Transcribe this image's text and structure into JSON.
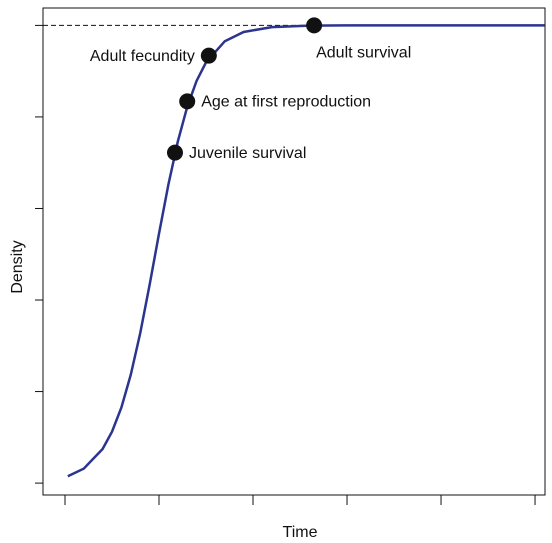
{
  "chart_data": {
    "type": "line",
    "x_label": "Time",
    "y_label": "Density",
    "xlim": [
      -0.234,
      5.106
    ],
    "ylim": [
      -0.13,
      5.19
    ],
    "xticks": [
      0,
      1,
      2,
      3,
      4,
      5
    ],
    "yticks": [
      0,
      1,
      2,
      3,
      4,
      5
    ],
    "asymptote": 5,
    "series": [
      {
        "color": "#2b3590",
        "x": [
          0.03,
          0.2,
          0.4,
          0.5,
          0.6,
          0.7,
          0.8,
          0.9,
          1.0,
          1.1,
          1.2,
          1.3,
          1.4,
          1.5,
          1.7,
          1.9,
          2.2,
          2.6,
          3.0,
          5.1
        ],
        "values": [
          0.075,
          0.158,
          0.373,
          0.561,
          0.826,
          1.185,
          1.637,
          2.165,
          2.725,
          3.262,
          3.731,
          4.11,
          4.394,
          4.596,
          4.827,
          4.928,
          4.981,
          4.997,
          5.0,
          5.0
        ]
      }
    ],
    "points": [
      {
        "label": "Juvenile survival",
        "x": 1.17,
        "y": 3.61,
        "label_side": "right"
      },
      {
        "label": "Age at first reproduction",
        "x": 1.3,
        "y": 4.17,
        "label_side": "right"
      },
      {
        "label": "Adult fecundity",
        "x": 1.53,
        "y": 4.67,
        "label_side": "left"
      },
      {
        "label": "Adult survival",
        "x": 2.65,
        "y": 5.0,
        "label_side": "below"
      }
    ]
  }
}
